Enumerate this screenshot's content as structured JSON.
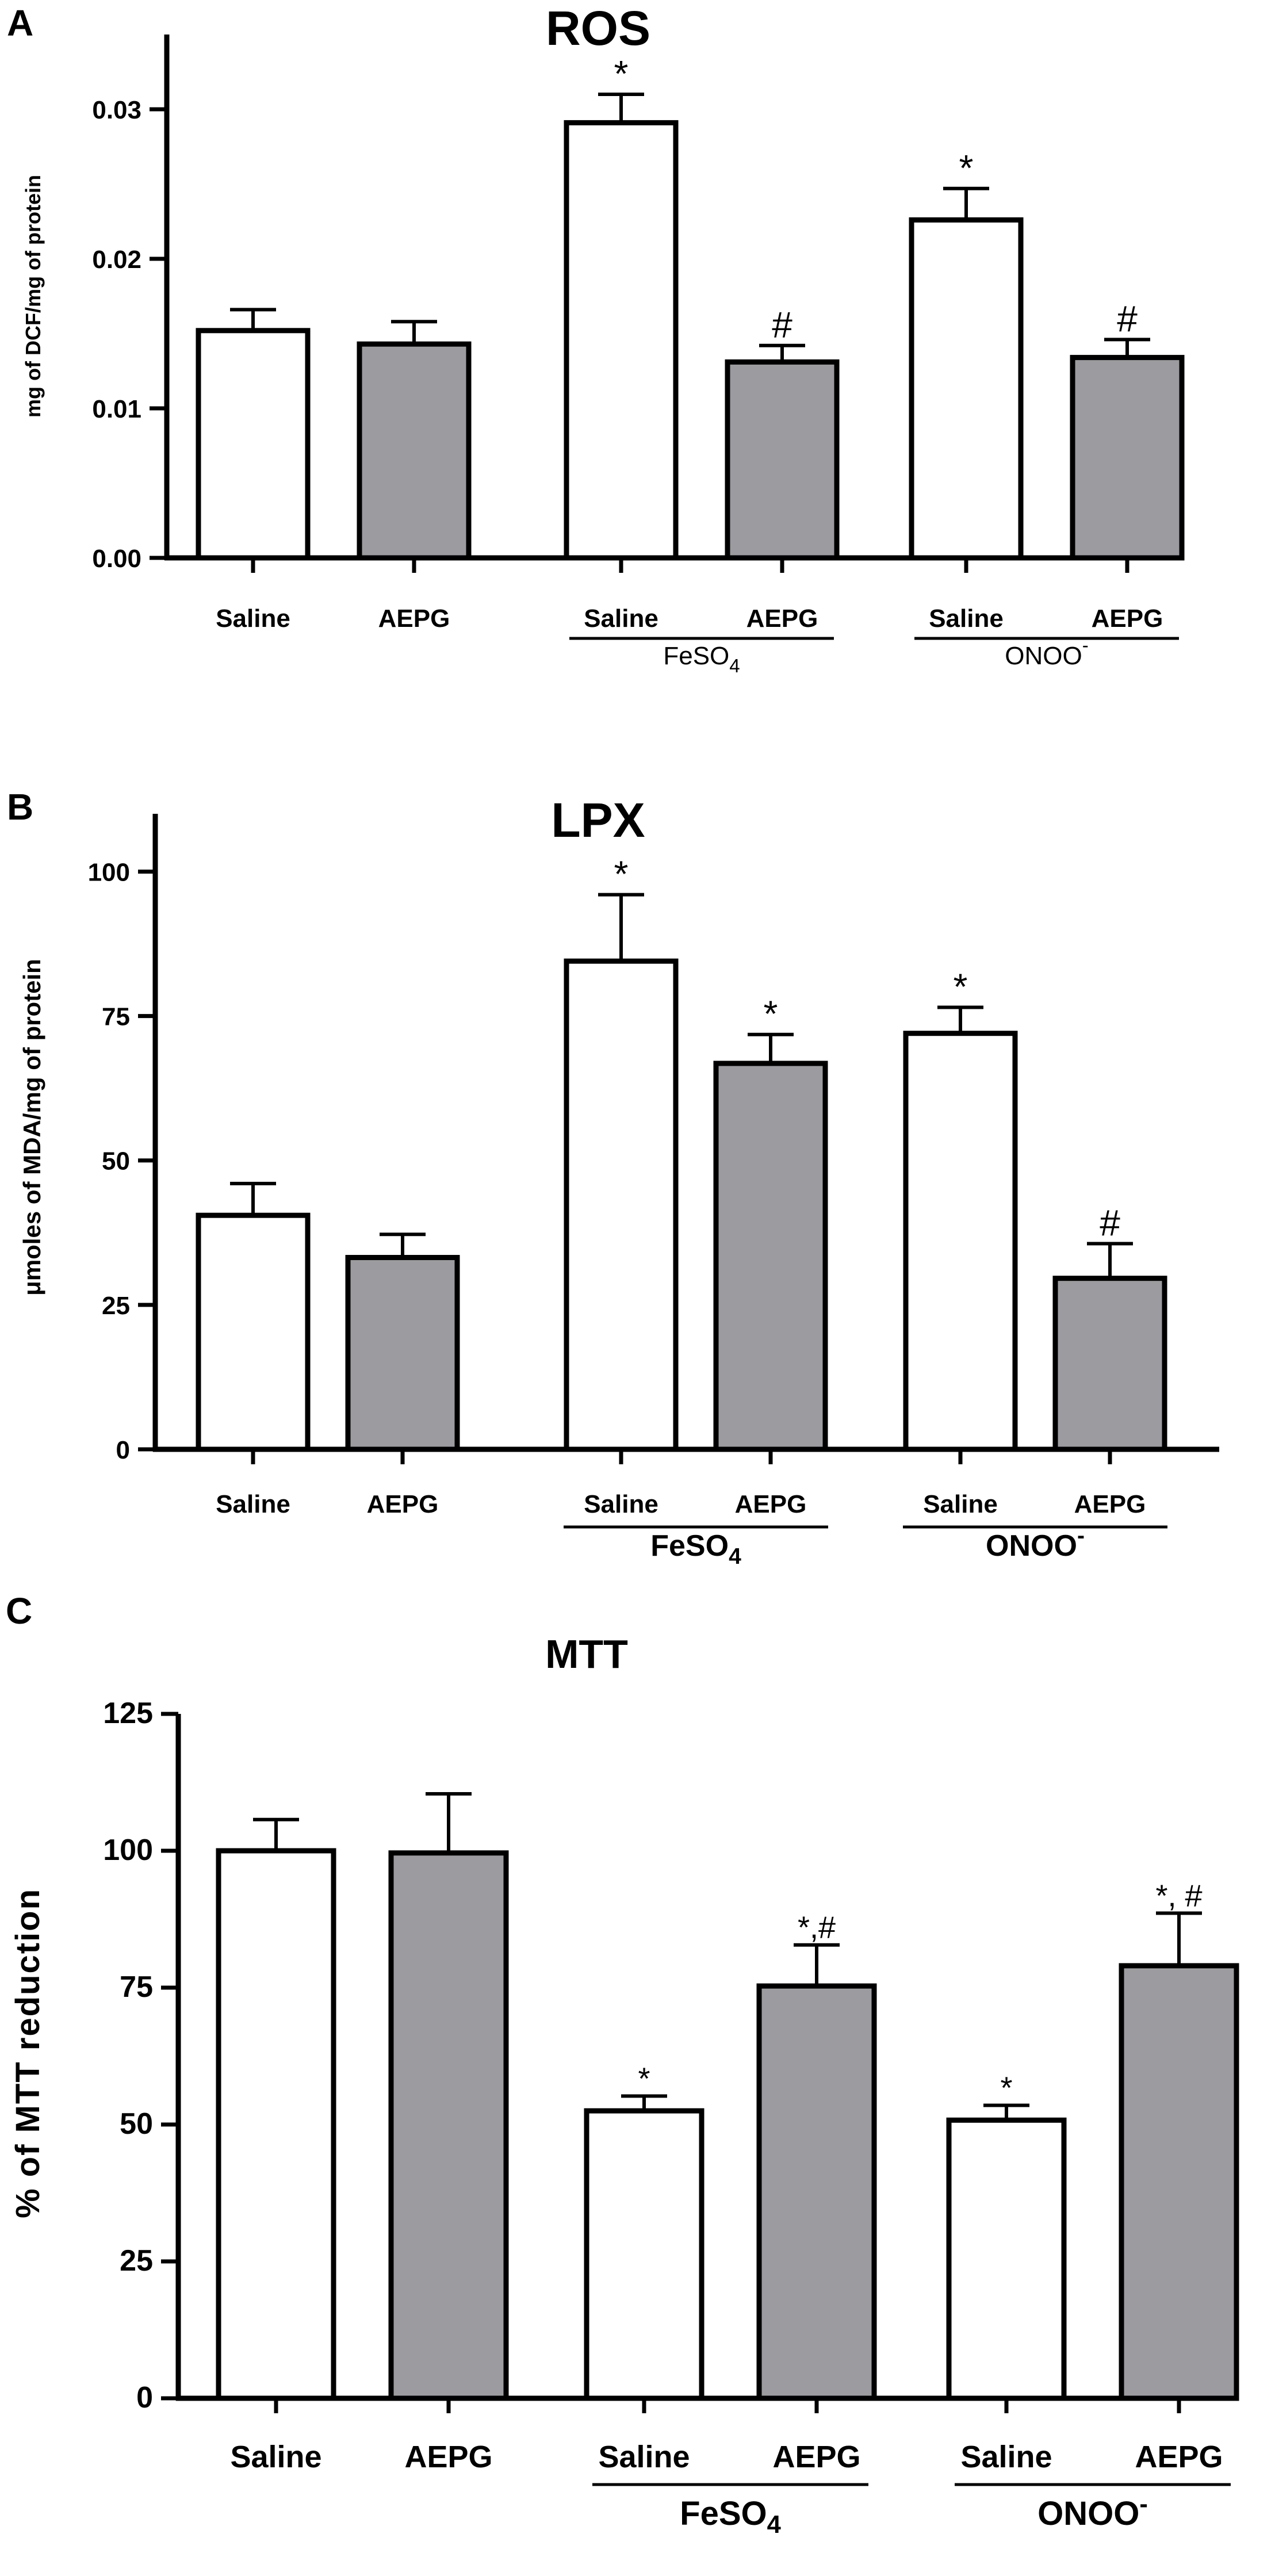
{
  "chart_data": [
    {
      "type": "bar",
      "panel": "A",
      "title": "ROS",
      "ylabel": "mg of DCF/mg of protein",
      "ylim": [
        0,
        0.035
      ],
      "yticks": [
        "0.00",
        "0.01",
        "0.02",
        "0.03"
      ],
      "ytick_values": [
        0,
        0.01,
        0.02,
        0.03
      ],
      "categories": [
        "Saline",
        "AEPG",
        "Saline",
        "AEPG",
        "Saline",
        "AEPG"
      ],
      "groups": [
        {
          "label_main": "FeSO",
          "label_sub": "4",
          "label_sup": "",
          "categories": [
            2,
            3
          ]
        },
        {
          "label_main": "ONOO",
          "label_sub": "",
          "label_sup": "-",
          "categories": [
            4,
            5
          ]
        }
      ],
      "values": [
        0.0152,
        0.0143,
        0.0291,
        0.0131,
        0.0226,
        0.0134
      ],
      "errors": [
        0.0014,
        0.0015,
        0.0019,
        0.0011,
        0.0021,
        0.0012
      ],
      "fills": [
        "#ffffff",
        "#9c9ba0",
        "#ffffff",
        "#9c9ba0",
        "#ffffff",
        "#9c9ba0"
      ],
      "annotations": [
        "",
        "",
        "*",
        "#",
        "*",
        "#"
      ]
    },
    {
      "type": "bar",
      "panel": "B",
      "title": "LPX",
      "ylabel": "μmoles of MDA/mg of protein",
      "ylim": [
        0,
        110
      ],
      "yticks": [
        "0",
        "25",
        "50",
        "75",
        "100"
      ],
      "ytick_values": [
        0,
        25,
        50,
        75,
        100
      ],
      "categories": [
        "Saline",
        "AEPG",
        "Saline",
        "AEPG",
        "Saline",
        "AEPG"
      ],
      "groups": [
        {
          "label_main": "FeSO",
          "label_sub": "4",
          "label_sup": "",
          "categories": [
            2,
            3
          ]
        },
        {
          "label_main": "ONOO",
          "label_sub": "",
          "label_sup": "-",
          "categories": [
            4,
            5
          ]
        }
      ],
      "values": [
        40.5,
        33.2,
        84.5,
        66.8,
        72.0,
        29.6
      ],
      "errors": [
        5.5,
        4.0,
        11.5,
        5.0,
        4.5,
        6.0
      ],
      "fills": [
        "#ffffff",
        "#9c9ba0",
        "#ffffff",
        "#9c9ba0",
        "#ffffff",
        "#9c9ba0"
      ],
      "annotations": [
        "",
        "",
        "*",
        "*",
        "*",
        "#"
      ]
    },
    {
      "type": "bar",
      "panel": "C",
      "title": "MTT",
      "ylabel": "% of MTT reduction",
      "ylim": [
        0,
        125
      ],
      "yticks": [
        "0",
        "25",
        "50",
        "75",
        "100",
        "125"
      ],
      "ytick_values": [
        0,
        25,
        50,
        75,
        100,
        125
      ],
      "categories": [
        "Saline",
        "AEPG",
        "Saline",
        "AEPG",
        "Saline",
        "AEPG"
      ],
      "groups": [
        {
          "label_main": "FeSO",
          "label_sub": "4",
          "label_sup": "",
          "categories": [
            2,
            3
          ]
        },
        {
          "label_main": "ONOO",
          "label_sub": "",
          "label_sup": "-",
          "categories": [
            4,
            5
          ]
        }
      ],
      "values": [
        100,
        99.6,
        52.5,
        75.3,
        50.8,
        79.0
      ],
      "errors": [
        5.7,
        10.8,
        2.7,
        7.5,
        2.7,
        9.6
      ],
      "fills": [
        "#ffffff",
        "#9c9ba0",
        "#ffffff",
        "#9c9ba0",
        "#ffffff",
        "#9c9ba0"
      ],
      "annotations": [
        "",
        "",
        "*",
        "*,#",
        "*",
        "*, #"
      ]
    }
  ]
}
